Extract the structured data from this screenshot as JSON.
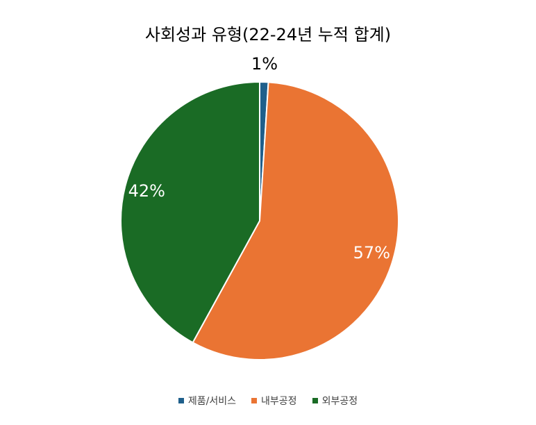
{
  "chart_data": {
    "type": "pie",
    "title": "사회성과 유형(22-24년 누적 합계)",
    "categories": [
      "제품/서비스",
      "내부공정",
      "외부공정"
    ],
    "values": [
      1,
      57,
      42
    ],
    "labels": [
      "1%",
      "57%",
      "42%"
    ],
    "colors": [
      "#1f5f8b",
      "#ea7433",
      "#1a6b25"
    ],
    "legend_position": "bottom"
  }
}
